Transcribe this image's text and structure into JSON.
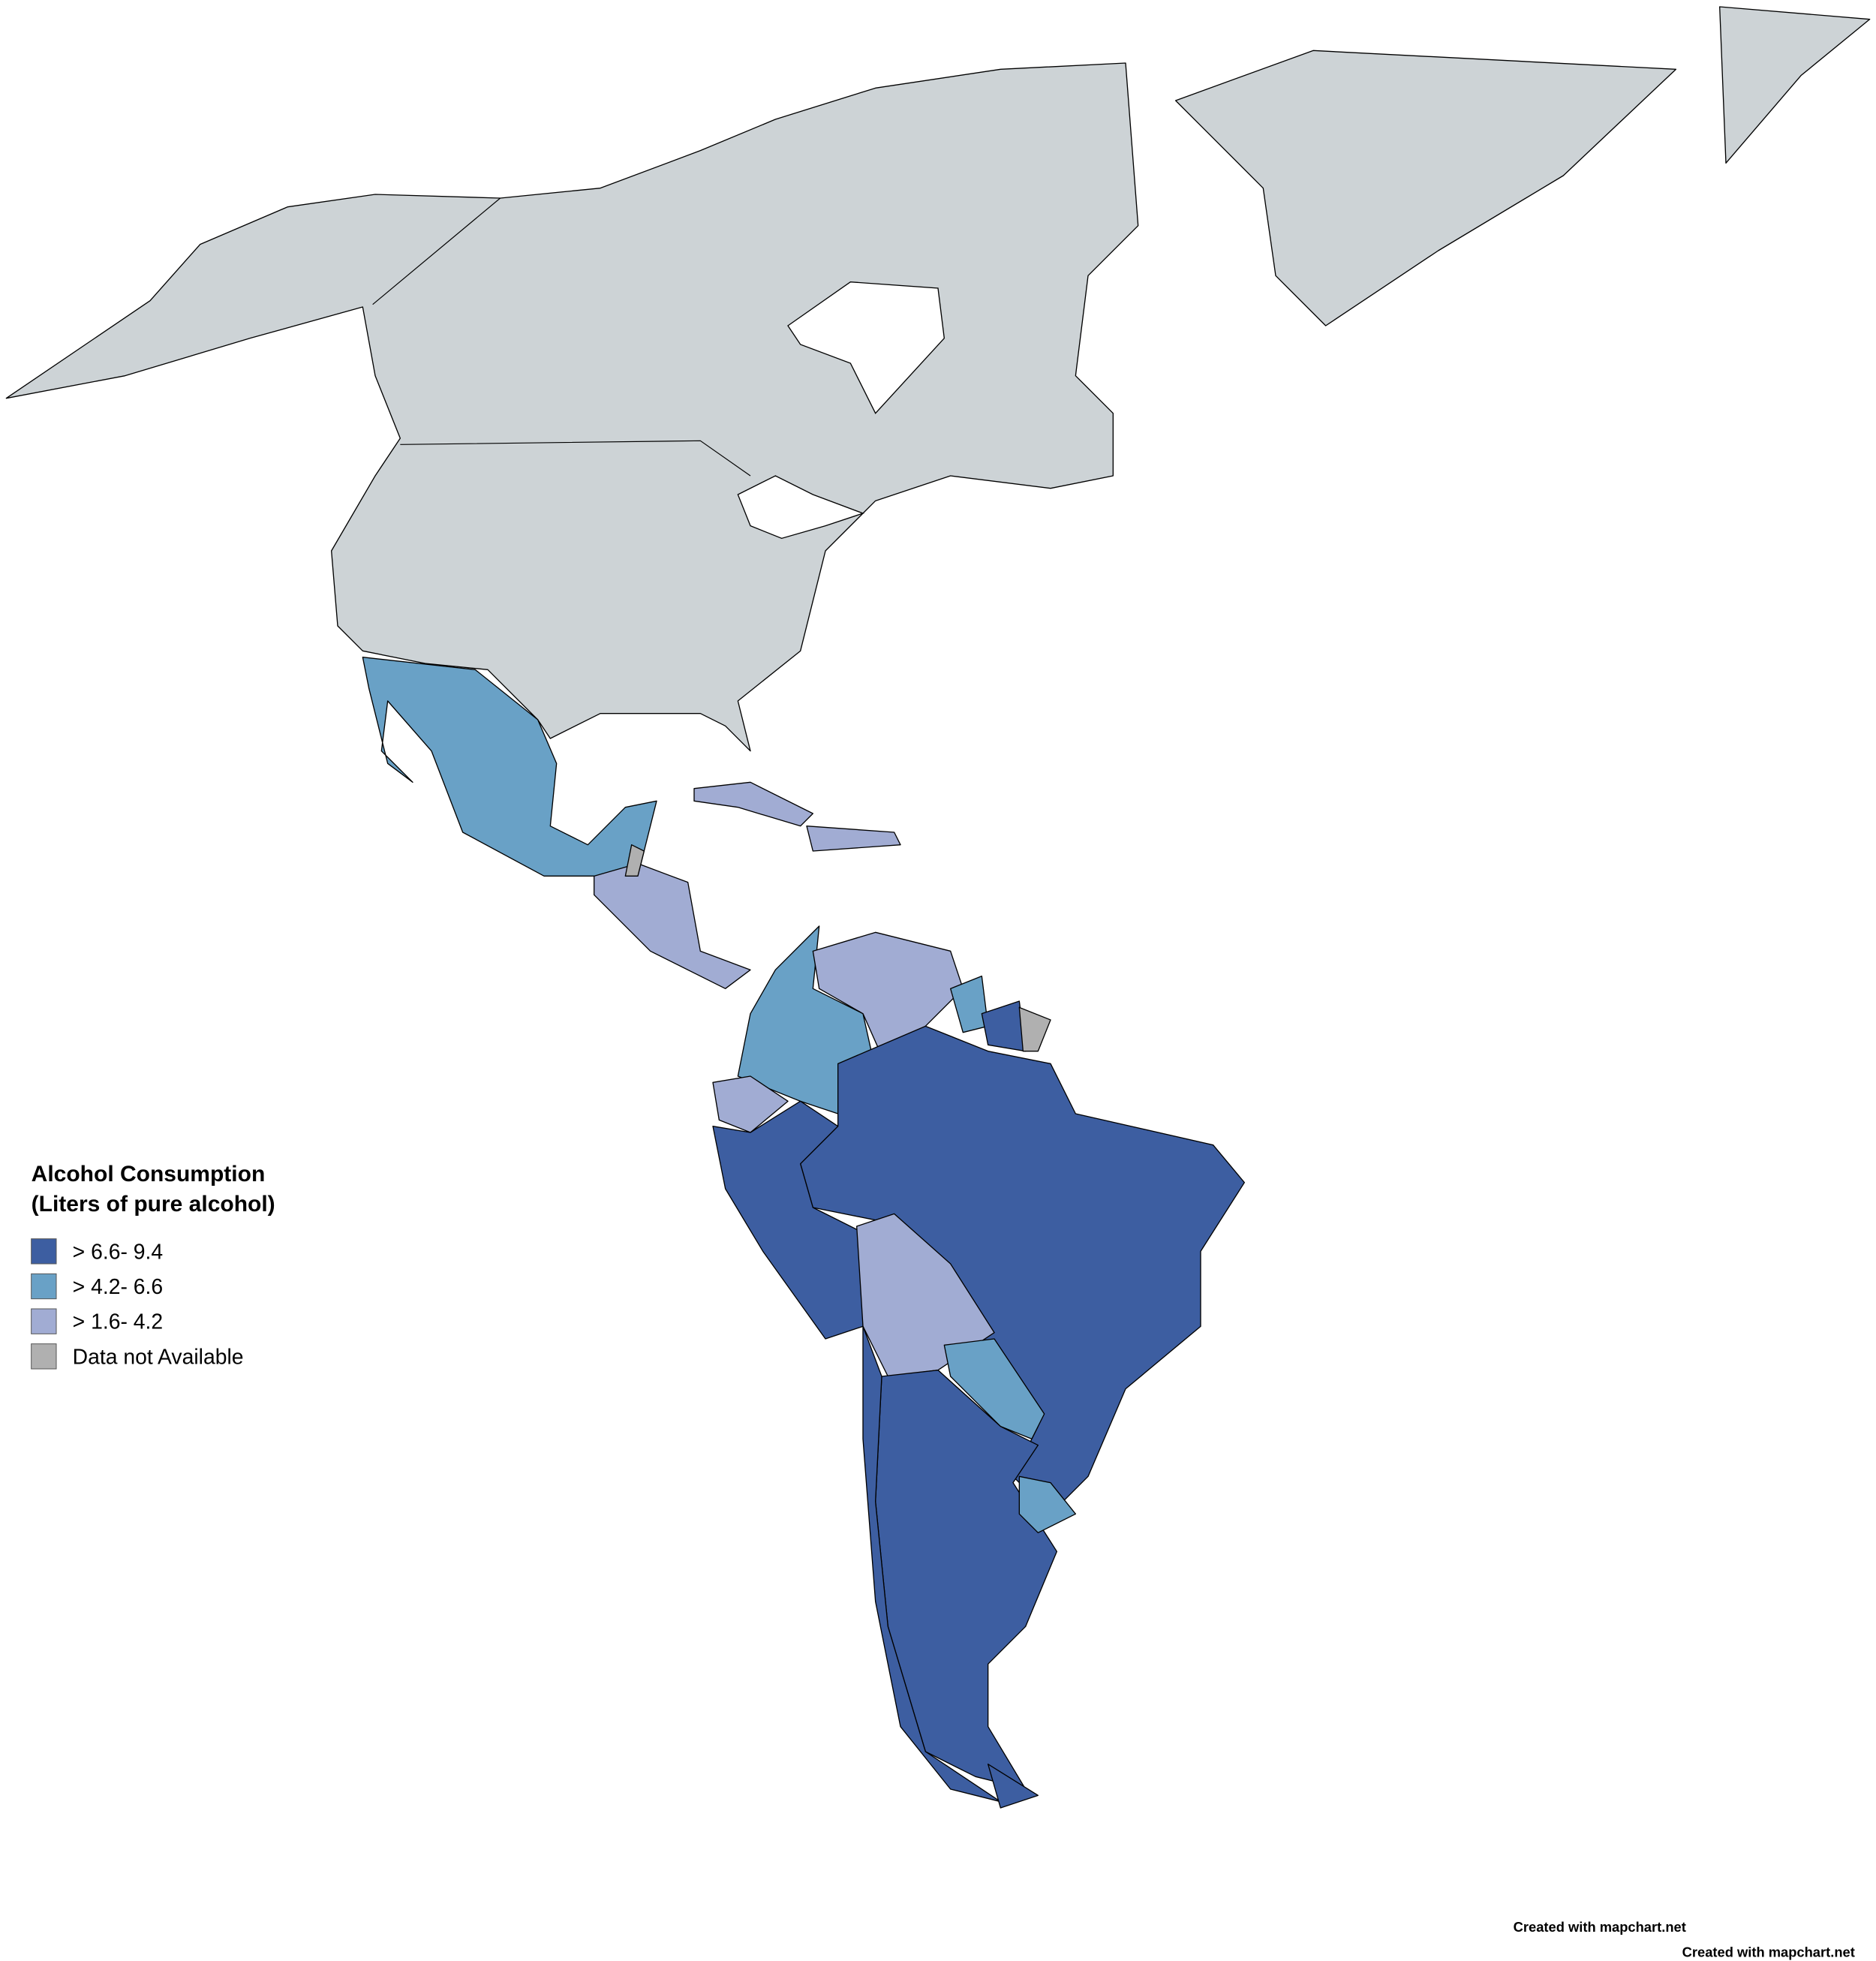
{
  "legend": {
    "title": [
      "Alcohol Consumption",
      "(Liters of pure alcohol)"
    ],
    "items": [
      {
        "label": "> 6.6- 9.4",
        "color": "#3d5ea1"
      },
      {
        "label": "> 4.2- 6.6",
        "color": "#69a1c6"
      },
      {
        "label": "> 1.6- 4.2",
        "color": "#a1acd3"
      },
      {
        "label": "Data not Available",
        "color": "#b0b0b0"
      }
    ]
  },
  "credits": [
    "Created with mapchart.net",
    "Created with mapchart.net"
  ]
}
